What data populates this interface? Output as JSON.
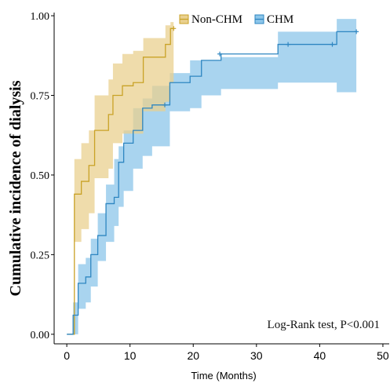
{
  "colors": {
    "non_chm": "#C9A227",
    "non_chm_band": "#E9D08F",
    "chm": "#2E86C1",
    "chm_band": "#8CC6EA",
    "axis": "#000000"
  },
  "chart_data": {
    "type": "line",
    "subtype": "step-with-confidence-bands",
    "title": "",
    "xlabel": "Time (Months)",
    "ylabel": "Cumulative incidence of dialysis",
    "xlim": [
      -2,
      51
    ],
    "ylim": [
      -0.03,
      1.01
    ],
    "xticks": [
      0,
      10,
      20,
      30,
      40,
      50
    ],
    "xtick_labels": [
      "0",
      "10",
      "20",
      "30",
      "40",
      "50"
    ],
    "yticks": [
      0.0,
      0.25,
      0.5,
      0.75,
      1.0
    ],
    "ytick_labels": [
      "0.00",
      "0.25",
      "0.50",
      "0.75",
      "1.00"
    ],
    "grid": false,
    "legend_position": "top-center",
    "annotation": "Log-Rank test, P<0.001",
    "series": [
      {
        "name": "Non-CHM",
        "color_key": "non_chm",
        "band_key": "non_chm_band",
        "steps": [
          {
            "x": 0.1,
            "y": 0.0,
            "lo": 0.0,
            "hi": 0.0
          },
          {
            "x": 1.2,
            "y": 0.44,
            "lo": 0.29,
            "hi": 0.55
          },
          {
            "x": 2.3,
            "y": 0.48,
            "lo": 0.33,
            "hi": 0.6
          },
          {
            "x": 3.5,
            "y": 0.53,
            "lo": 0.38,
            "hi": 0.64
          },
          {
            "x": 4.4,
            "y": 0.64,
            "lo": 0.49,
            "hi": 0.75
          },
          {
            "x": 6.6,
            "y": 0.69,
            "lo": 0.52,
            "hi": 0.8
          },
          {
            "x": 7.3,
            "y": 0.75,
            "lo": 0.6,
            "hi": 0.85
          },
          {
            "x": 8.8,
            "y": 0.78,
            "lo": 0.63,
            "hi": 0.88
          },
          {
            "x": 10.5,
            "y": 0.79,
            "lo": 0.63,
            "hi": 0.89
          },
          {
            "x": 12.1,
            "y": 0.87,
            "lo": 0.7,
            "hi": 0.93
          },
          {
            "x": 15.6,
            "y": 0.91,
            "lo": 0.73,
            "hi": 0.97
          },
          {
            "x": 16.4,
            "y": 0.96,
            "lo": 0.79,
            "hi": 0.98
          },
          {
            "x": 16.9,
            "y": 0.96,
            "lo": 0.79,
            "hi": 0.98
          }
        ],
        "censors": [
          {
            "x": 16.9,
            "y": 0.96
          }
        ]
      },
      {
        "name": "CHM",
        "color_key": "chm",
        "band_key": "chm_band",
        "steps": [
          {
            "x": 0.0,
            "y": 0.0,
            "lo": 0.0,
            "hi": 0.0
          },
          {
            "x": 1.0,
            "y": 0.06,
            "lo": 0.0,
            "hi": 0.1
          },
          {
            "x": 1.8,
            "y": 0.16,
            "lo": 0.08,
            "hi": 0.22
          },
          {
            "x": 3.0,
            "y": 0.18,
            "lo": 0.1,
            "hi": 0.24
          },
          {
            "x": 3.8,
            "y": 0.25,
            "lo": 0.15,
            "hi": 0.3
          },
          {
            "x": 4.9,
            "y": 0.31,
            "lo": 0.23,
            "hi": 0.38
          },
          {
            "x": 6.2,
            "y": 0.41,
            "lo": 0.29,
            "hi": 0.47
          },
          {
            "x": 7.5,
            "y": 0.43,
            "lo": 0.34,
            "hi": 0.55
          },
          {
            "x": 8.2,
            "y": 0.54,
            "lo": 0.4,
            "hi": 0.59
          },
          {
            "x": 9.0,
            "y": 0.6,
            "lo": 0.45,
            "hi": 0.64
          },
          {
            "x": 10.5,
            "y": 0.64,
            "lo": 0.52,
            "hi": 0.71
          },
          {
            "x": 12.0,
            "y": 0.71,
            "lo": 0.56,
            "hi": 0.74
          },
          {
            "x": 13.5,
            "y": 0.72,
            "lo": 0.59,
            "hi": 0.78
          },
          {
            "x": 16.3,
            "y": 0.79,
            "lo": 0.7,
            "hi": 0.82
          },
          {
            "x": 19.5,
            "y": 0.81,
            "lo": 0.71,
            "hi": 0.86
          },
          {
            "x": 21.3,
            "y": 0.86,
            "lo": 0.75,
            "hi": 0.86
          },
          {
            "x": 24.4,
            "y": 0.88,
            "lo": 0.77,
            "hi": 0.87
          },
          {
            "x": 33.4,
            "y": 0.91,
            "lo": 0.79,
            "hi": 0.95
          },
          {
            "x": 42.7,
            "y": 0.95,
            "lo": 0.76,
            "hi": 0.99
          },
          {
            "x": 45.8,
            "y": 0.95,
            "lo": 0.76,
            "hi": 0.99
          }
        ],
        "censors": [
          {
            "x": 15.5,
            "y": 0.72
          },
          {
            "x": 24.2,
            "y": 0.88
          },
          {
            "x": 35.0,
            "y": 0.91
          },
          {
            "x": 42.0,
            "y": 0.91
          },
          {
            "x": 45.8,
            "y": 0.95
          }
        ]
      }
    ]
  }
}
